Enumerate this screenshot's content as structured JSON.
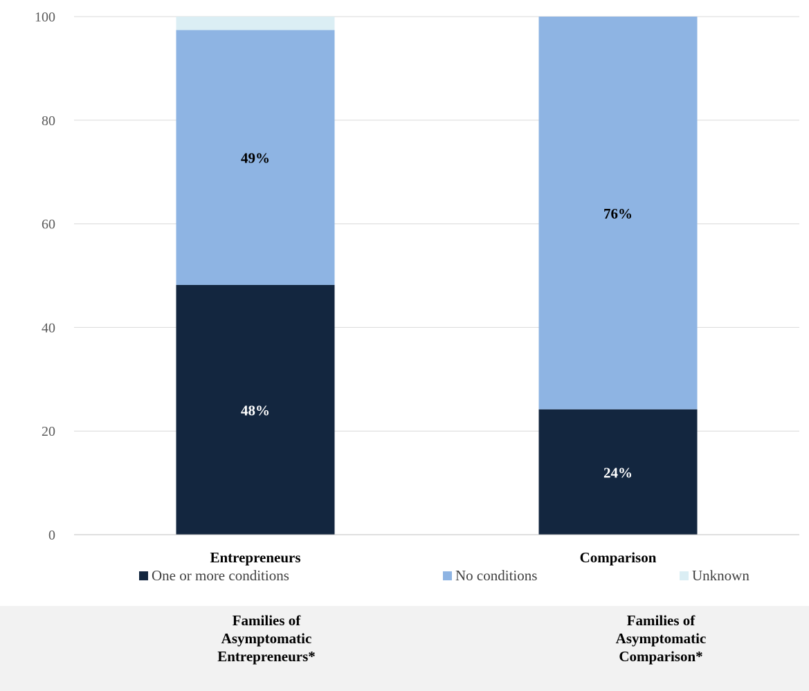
{
  "chart_data": {
    "type": "bar",
    "stacked": true,
    "categories": [
      "Entrepreneurs",
      "Comparison"
    ],
    "series": [
      {
        "name": "One or more conditions",
        "values": [
          48.2,
          24.2
        ],
        "labels": [
          "48%",
          "24%"
        ],
        "color": "#13263f",
        "label_color": "#ffffff"
      },
      {
        "name": "No conditions",
        "values": [
          49.2,
          75.8
        ],
        "labels": [
          "49%",
          "76%"
        ],
        "color": "#8eb4e3",
        "label_color": "#000000"
      },
      {
        "name": "Unknown",
        "values": [
          2.6,
          0
        ],
        "labels": [
          "",
          ""
        ],
        "color": "#dbeef4",
        "label_color": "#000000"
      }
    ],
    "ylim": [
      0,
      100
    ],
    "yticks": [
      0,
      20,
      40,
      60,
      80,
      100
    ],
    "grid": true,
    "legend_position": "bottom"
  },
  "footer": {
    "left": [
      "Families of",
      "Asymptomatic",
      "Entrepreneurs*"
    ],
    "right": [
      "Families of",
      "Asymptomatic",
      "Comparison*"
    ]
  }
}
